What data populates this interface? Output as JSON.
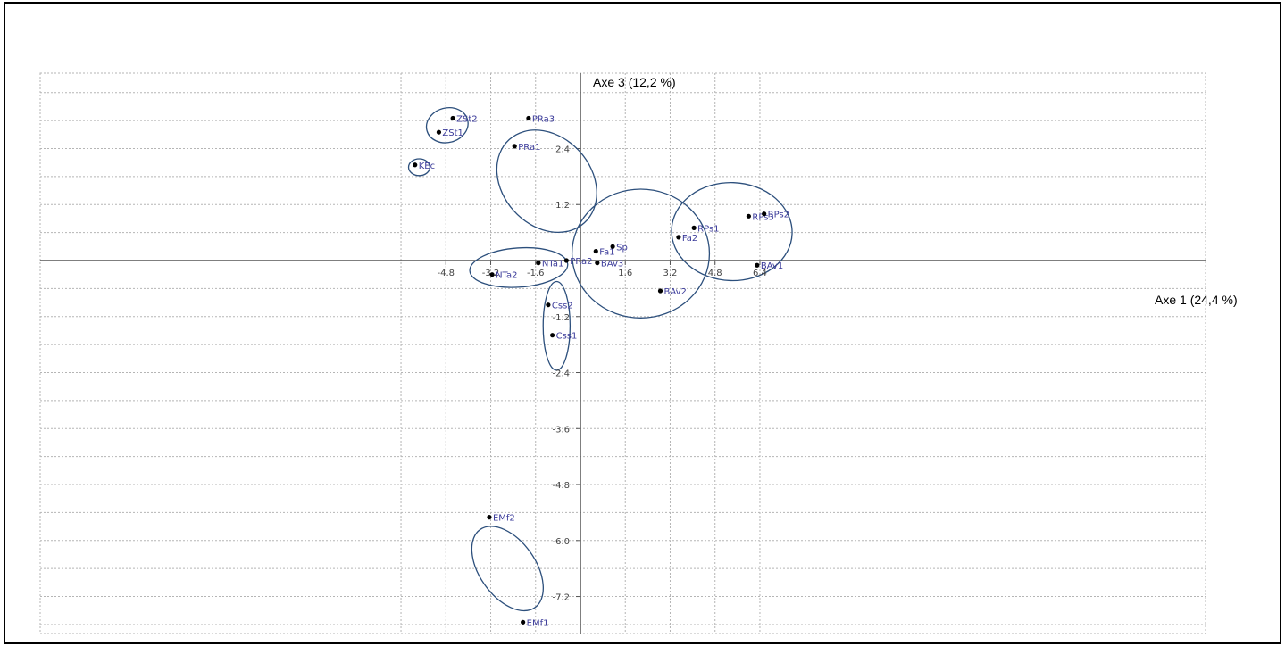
{
  "chart_data": {
    "type": "scatter",
    "xlabel": "Axe 1 (24,4 %)",
    "ylabel": "Axe 3 (12,2 %)",
    "xlim": [
      -6.0,
      7.0
    ],
    "ylim": [
      -7.8,
      3.5
    ],
    "grid": true,
    "x_ticks": [
      {
        "value": -4.8,
        "label": "-4.8"
      },
      {
        "value": -3.2,
        "label": "-3.2"
      },
      {
        "value": -1.6,
        "label": "-1.6"
      },
      {
        "value": 1.6,
        "label": "1.6"
      },
      {
        "value": 3.2,
        "label": "3.2"
      },
      {
        "value": 4.8,
        "label": "4.8"
      },
      {
        "value": 6.4,
        "label": "6.4"
      }
    ],
    "y_ticks": [
      {
        "value": 2.4,
        "label": "2.4"
      },
      {
        "value": 1.2,
        "label": "1.2"
      },
      {
        "value": -1.2,
        "label": "-1.2"
      },
      {
        "value": -2.4,
        "label": "-2.4"
      },
      {
        "value": -3.6,
        "label": "-3.6"
      },
      {
        "value": -4.8,
        "label": "-4.8"
      },
      {
        "value": -6.0,
        "label": "-6.0"
      },
      {
        "value": -7.2,
        "label": "-7.2"
      }
    ],
    "points": [
      {
        "label": "KEc",
        "x": -5.9,
        "y": 2.05
      },
      {
        "label": "ZSt1",
        "x": -5.05,
        "y": 2.75
      },
      {
        "label": "ZSt2",
        "x": -4.55,
        "y": 3.05
      },
      {
        "label": "PRa1",
        "x": -2.35,
        "y": 2.45
      },
      {
        "label": "PRa3",
        "x": -1.85,
        "y": 3.05
      },
      {
        "label": "PRa2",
        "x": -0.5,
        "y": 0.0
      },
      {
        "label": "NTa1",
        "x": -1.5,
        "y": -0.05
      },
      {
        "label": "NTa2",
        "x": -3.15,
        "y": -0.3
      },
      {
        "label": "Css2",
        "x": -1.15,
        "y": -0.95
      },
      {
        "label": "Css1",
        "x": -1.0,
        "y": -1.6
      },
      {
        "label": "Fa1",
        "x": 0.55,
        "y": 0.2
      },
      {
        "label": "BAv3",
        "x": 0.6,
        "y": -0.05
      },
      {
        "label": "Sp",
        "x": 1.15,
        "y": 0.3
      },
      {
        "label": "Fa2",
        "x": 3.5,
        "y": 0.5
      },
      {
        "label": "BAv2",
        "x": 2.85,
        "y": -0.65
      },
      {
        "label": "RPs1",
        "x": 4.05,
        "y": 0.7
      },
      {
        "label": "RPs3",
        "x": 6.0,
        "y": 0.95
      },
      {
        "label": "RPs2",
        "x": 6.55,
        "y": 1.0
      },
      {
        "label": "BAv1",
        "x": 6.3,
        "y": -0.1
      },
      {
        "label": "EMf2",
        "x": -3.25,
        "y": -5.5
      },
      {
        "label": "EMf1",
        "x": -2.05,
        "y": -7.75
      }
    ],
    "groups": [
      {
        "cx": -5.75,
        "cy": 2.0,
        "rx": 0.38,
        "ry": 0.18,
        "angle": 0
      },
      {
        "cx": -4.75,
        "cy": 2.9,
        "rx": 0.75,
        "ry": 0.37,
        "angle": -15
      },
      {
        "cx": -1.2,
        "cy": 1.7,
        "rx": 2.0,
        "ry": 0.95,
        "angle": 48
      },
      {
        "cx": -2.2,
        "cy": -0.15,
        "rx": 1.75,
        "ry": 0.42,
        "angle": -4
      },
      {
        "cx": -0.85,
        "cy": -1.4,
        "rx": 0.48,
        "ry": 0.95,
        "angle": 0
      },
      {
        "cx": 2.15,
        "cy": 0.15,
        "rx": 2.45,
        "ry": 1.38,
        "angle": 0
      },
      {
        "cx": 5.4,
        "cy": 0.62,
        "rx": 2.15,
        "ry": 1.05,
        "angle": 2
      },
      {
        "cx": -2.6,
        "cy": -6.6,
        "rx": 1.7,
        "ry": 0.6,
        "angle": 55
      }
    ],
    "colors": {
      "grid": "#b5b5b5",
      "axis": "#555555",
      "point": "#000000",
      "label": "#3b3b9a",
      "ellipse": "#2c4f7c"
    }
  }
}
